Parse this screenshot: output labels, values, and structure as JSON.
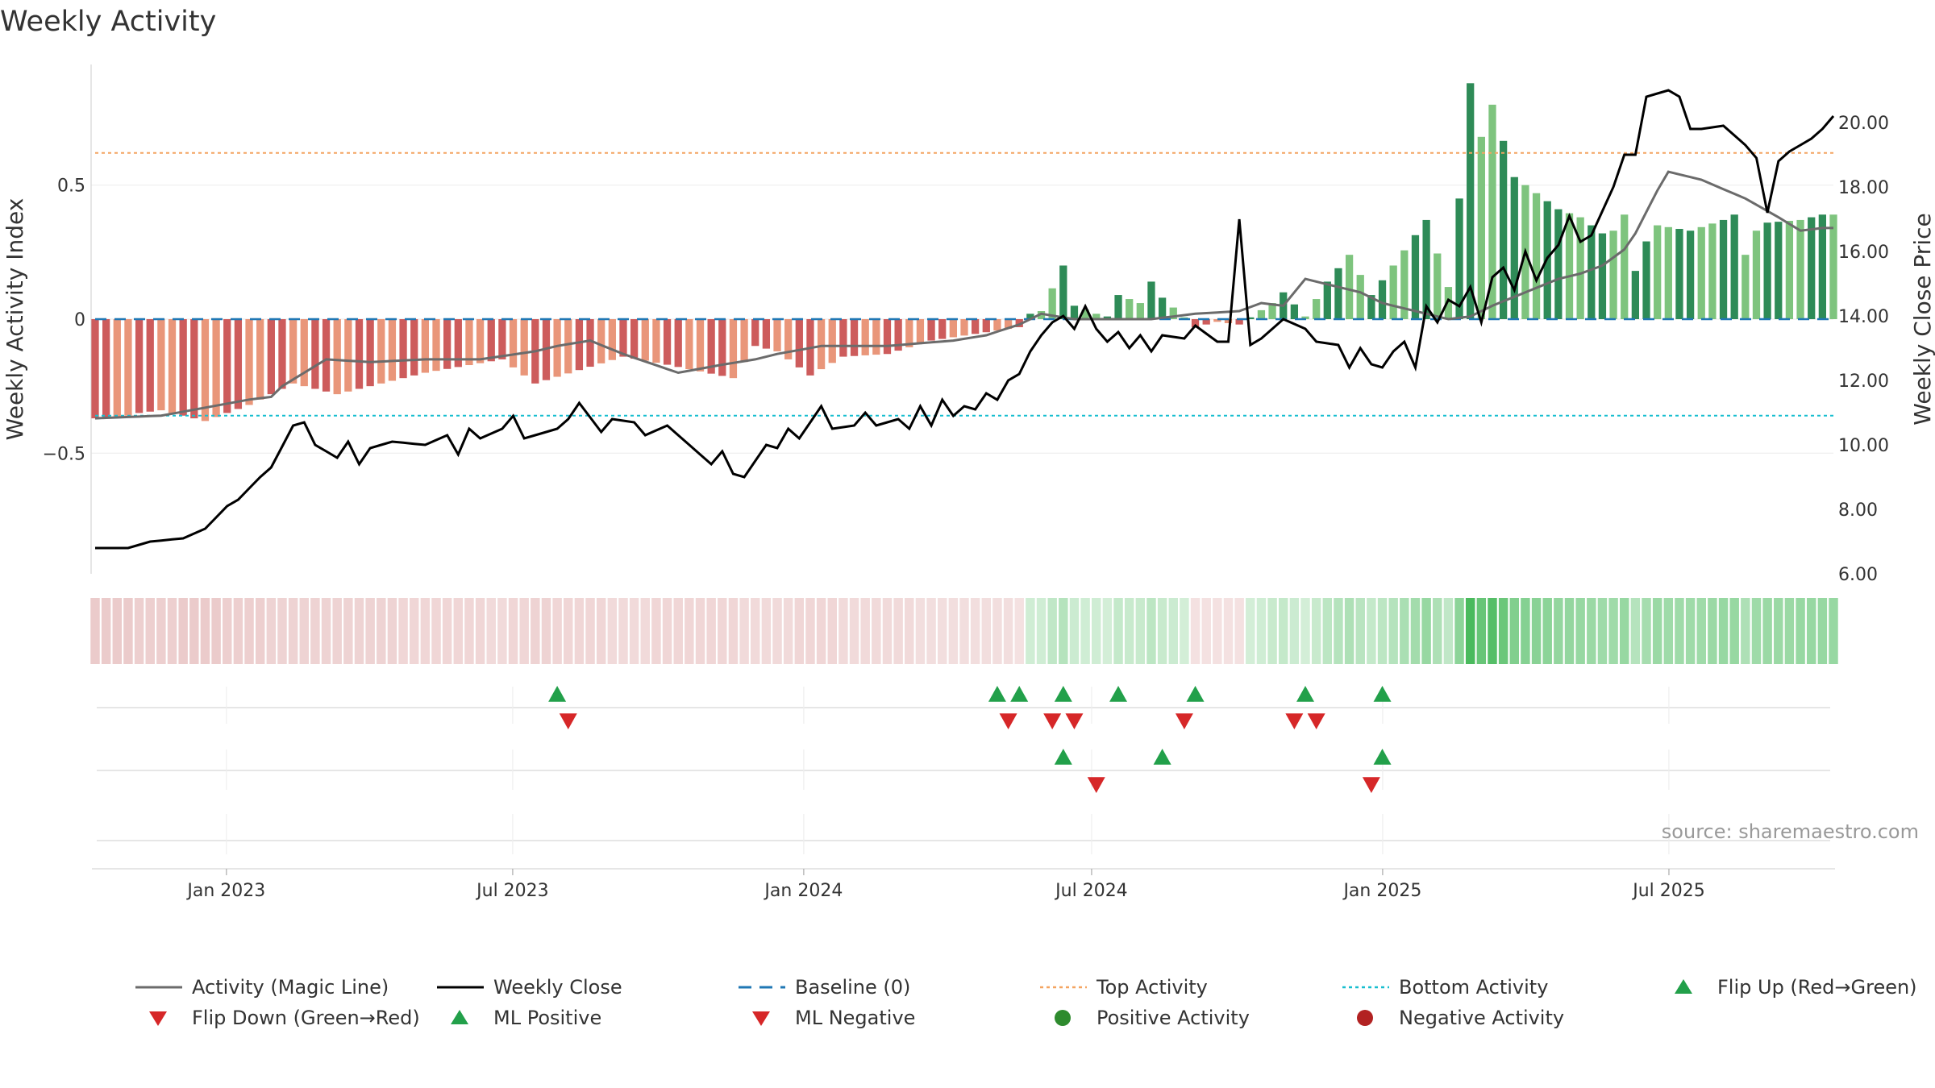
{
  "chart_data": {
    "type": "bar",
    "title": "Weekly Activity",
    "ylabel_left": "Weekly Activity Index",
    "ylabel_right": "Weekly Close Price",
    "source": "source: sharemaestro.com",
    "x_start": "2022-10-10",
    "x_end": "2025-10-13",
    "x_ticks": [
      {
        "date": "2023-01-01",
        "label": "Jan 2023"
      },
      {
        "date": "2023-07-01",
        "label": "Jul 2023"
      },
      {
        "date": "2024-01-01",
        "label": "Jan 2024"
      },
      {
        "date": "2024-07-01",
        "label": "Jul 2024"
      },
      {
        "date": "2025-01-01",
        "label": "Jan 2025"
      },
      {
        "date": "2025-07-01",
        "label": "Jul 2025"
      }
    ],
    "y_left": {
      "range": [
        -0.95,
        0.95
      ],
      "ticks": [
        {
          "v": 0.5,
          "label": "0.5"
        },
        {
          "v": 0,
          "label": "0"
        },
        {
          "v": -0.5,
          "label": "−0.5"
        }
      ]
    },
    "y_right": {
      "range": [
        6.0,
        21.8
      ],
      "ticks": [
        {
          "v": 20,
          "label": "20.00"
        },
        {
          "v": 18,
          "label": "18.00"
        },
        {
          "v": 16,
          "label": "16.00"
        },
        {
          "v": 14,
          "label": "14.00"
        },
        {
          "v": 12,
          "label": "12.00"
        },
        {
          "v": 10,
          "label": "10.00"
        },
        {
          "v": 8,
          "label": "8.00"
        },
        {
          "v": 6,
          "label": "6.00"
        }
      ]
    },
    "top_activity": 0.62,
    "bottom_activity": -0.36,
    "baseline": 0,
    "anchors": {
      "activity": [
        [
          0,
          -0.37
        ],
        [
          3,
          -0.36
        ],
        [
          4,
          -0.35
        ],
        [
          6,
          -0.34
        ],
        [
          10,
          -0.38
        ],
        [
          14,
          -0.32
        ],
        [
          18,
          -0.24
        ],
        [
          22,
          -0.28
        ],
        [
          30,
          -0.2
        ],
        [
          37,
          -0.15
        ],
        [
          40,
          -0.24
        ],
        [
          48,
          -0.14
        ],
        [
          52,
          -0.17
        ],
        [
          58,
          -0.22
        ],
        [
          60,
          -0.1
        ],
        [
          62,
          -0.12
        ],
        [
          65,
          -0.21
        ],
        [
          68,
          -0.14
        ],
        [
          72,
          -0.13
        ],
        [
          76,
          -0.08
        ],
        [
          84,
          -0.03
        ],
        [
          85,
          0.02
        ],
        [
          86,
          0.03
        ],
        [
          88,
          0.2
        ],
        [
          89,
          0.05
        ],
        [
          91,
          0.02
        ],
        [
          92,
          0.01
        ],
        [
          93,
          0.09
        ],
        [
          95,
          0.06
        ],
        [
          96,
          0.14
        ],
        [
          97,
          0.08
        ],
        [
          100,
          -0.03
        ],
        [
          102,
          -0.01
        ],
        [
          104,
          -0.02
        ],
        [
          107,
          0.06
        ],
        [
          108,
          0.1
        ],
        [
          110,
          0.01
        ],
        [
          112,
          0.14
        ],
        [
          114,
          0.24
        ],
        [
          116,
          0.09
        ],
        [
          118,
          0.2
        ],
        [
          121,
          0.37
        ],
        [
          123,
          0.12
        ],
        [
          124,
          0.45
        ],
        [
          125,
          0.88
        ],
        [
          126,
          0.68
        ],
        [
          127,
          0.8
        ],
        [
          129,
          0.53
        ],
        [
          130,
          0.5
        ],
        [
          133,
          0.41
        ],
        [
          135,
          0.38
        ],
        [
          137,
          0.32
        ],
        [
          138,
          0.33
        ],
        [
          139,
          0.39
        ],
        [
          140,
          0.18
        ],
        [
          141,
          0.29
        ],
        [
          142,
          0.35
        ],
        [
          145,
          0.33
        ],
        [
          148,
          0.37
        ],
        [
          149,
          0.39
        ],
        [
          150,
          0.24
        ],
        [
          151,
          0.33
        ],
        [
          152,
          0.36
        ],
        [
          155,
          0.37
        ],
        [
          157,
          0.39
        ]
      ],
      "magic": [
        [
          0,
          -0.37
        ],
        [
          6,
          -0.36
        ],
        [
          10,
          -0.33
        ],
        [
          14,
          -0.3
        ],
        [
          16,
          -0.29
        ],
        [
          17,
          -0.25
        ],
        [
          21,
          -0.15
        ],
        [
          25,
          -0.16
        ],
        [
          30,
          -0.15
        ],
        [
          35,
          -0.15
        ],
        [
          40,
          -0.12
        ],
        [
          42,
          -0.1
        ],
        [
          45,
          -0.08
        ],
        [
          48,
          -0.13
        ],
        [
          53,
          -0.2
        ],
        [
          57,
          -0.17
        ],
        [
          60,
          -0.15
        ],
        [
          62,
          -0.13
        ],
        [
          66,
          -0.1
        ],
        [
          72,
          -0.1
        ],
        [
          78,
          -0.08
        ],
        [
          81,
          -0.06
        ],
        [
          84,
          -0.02
        ],
        [
          86,
          0.02
        ],
        [
          89,
          0.0
        ],
        [
          96,
          0.0
        ],
        [
          98,
          0.01
        ],
        [
          100,
          0.02
        ],
        [
          104,
          0.03
        ],
        [
          106,
          0.06
        ],
        [
          108,
          0.05
        ],
        [
          110,
          0.15
        ],
        [
          115,
          0.1
        ],
        [
          117,
          0.06
        ],
        [
          121,
          0.02
        ],
        [
          123,
          0.0
        ],
        [
          125,
          0.01
        ],
        [
          127,
          0.05
        ],
        [
          130,
          0.1
        ],
        [
          133,
          0.15
        ],
        [
          134,
          0.16
        ],
        [
          135,
          0.17
        ],
        [
          137,
          0.2
        ],
        [
          139,
          0.26
        ],
        [
          140,
          0.32
        ],
        [
          141,
          0.4
        ],
        [
          142,
          0.48
        ],
        [
          143,
          0.55
        ],
        [
          146,
          0.52
        ],
        [
          150,
          0.45
        ],
        [
          153,
          0.38
        ],
        [
          155,
          0.33
        ],
        [
          157,
          0.34
        ]
      ],
      "close": [
        [
          0,
          6.8
        ],
        [
          3,
          6.8
        ],
        [
          5,
          7.0
        ],
        [
          8,
          7.1
        ],
        [
          10,
          7.4
        ],
        [
          12,
          8.1
        ],
        [
          13,
          8.3
        ],
        [
          15,
          9.0
        ],
        [
          16,
          9.3
        ],
        [
          18,
          10.6
        ],
        [
          19,
          10.7
        ],
        [
          20,
          10.0
        ],
        [
          22,
          9.6
        ],
        [
          23,
          10.1
        ],
        [
          24,
          9.4
        ],
        [
          25,
          9.9
        ],
        [
          27,
          10.1
        ],
        [
          30,
          10.0
        ],
        [
          32,
          10.3
        ],
        [
          33,
          9.7
        ],
        [
          34,
          10.5
        ],
        [
          35,
          10.2
        ],
        [
          37,
          10.5
        ],
        [
          38,
          10.9
        ],
        [
          39,
          10.2
        ],
        [
          41,
          10.4
        ],
        [
          42,
          10.5
        ],
        [
          43,
          10.8
        ],
        [
          44,
          11.3
        ],
        [
          46,
          10.4
        ],
        [
          47,
          10.8
        ],
        [
          49,
          10.7
        ],
        [
          50,
          10.3
        ],
        [
          52,
          10.6
        ],
        [
          54,
          10.0
        ],
        [
          56,
          9.4
        ],
        [
          57,
          9.8
        ],
        [
          58,
          9.1
        ],
        [
          59,
          9.0
        ],
        [
          61,
          10.0
        ],
        [
          62,
          9.9
        ],
        [
          63,
          10.5
        ],
        [
          64,
          10.2
        ],
        [
          66,
          11.2
        ],
        [
          67,
          10.5
        ],
        [
          69,
          10.6
        ],
        [
          70,
          11.0
        ],
        [
          71,
          10.6
        ],
        [
          73,
          10.8
        ],
        [
          74,
          10.5
        ],
        [
          75,
          11.2
        ],
        [
          76,
          10.6
        ],
        [
          77,
          11.4
        ],
        [
          78,
          10.9
        ],
        [
          79,
          11.2
        ],
        [
          80,
          11.1
        ],
        [
          81,
          11.6
        ],
        [
          82,
          11.4
        ],
        [
          83,
          12.0
        ],
        [
          84,
          12.2
        ],
        [
          85,
          12.9
        ],
        [
          86,
          13.4
        ],
        [
          87,
          13.8
        ],
        [
          88,
          14.0
        ],
        [
          89,
          13.6
        ],
        [
          90,
          14.3
        ],
        [
          91,
          13.6
        ],
        [
          92,
          13.2
        ],
        [
          93,
          13.5
        ],
        [
          94,
          13.0
        ],
        [
          95,
          13.4
        ],
        [
          96,
          12.9
        ],
        [
          97,
          13.4
        ],
        [
          99,
          13.3
        ],
        [
          100,
          13.7
        ],
        [
          102,
          13.2
        ],
        [
          103,
          13.2
        ],
        [
          104,
          17.0
        ],
        [
          105,
          13.1
        ],
        [
          106,
          13.3
        ],
        [
          108,
          13.9
        ],
        [
          110,
          13.6
        ],
        [
          111,
          13.2
        ],
        [
          113,
          13.1
        ],
        [
          114,
          12.4
        ],
        [
          115,
          13.0
        ],
        [
          116,
          12.5
        ],
        [
          117,
          12.4
        ],
        [
          118,
          12.9
        ],
        [
          119,
          13.2
        ],
        [
          120,
          12.4
        ],
        [
          121,
          14.3
        ],
        [
          122,
          13.8
        ],
        [
          123,
          14.5
        ],
        [
          124,
          14.3
        ],
        [
          125,
          14.9
        ],
        [
          126,
          13.8
        ],
        [
          127,
          15.2
        ],
        [
          128,
          15.5
        ],
        [
          129,
          14.8
        ],
        [
          130,
          16.0
        ],
        [
          131,
          15.1
        ],
        [
          132,
          15.8
        ],
        [
          133,
          16.2
        ],
        [
          134,
          17.1
        ],
        [
          135,
          16.3
        ],
        [
          136,
          16.5
        ],
        [
          138,
          18.0
        ],
        [
          139,
          19.0
        ],
        [
          140,
          19.0
        ],
        [
          141,
          20.8
        ],
        [
          142,
          20.9
        ],
        [
          143,
          21.0
        ],
        [
          144,
          20.8
        ],
        [
          145,
          19.8
        ],
        [
          146,
          19.8
        ],
        [
          148,
          19.9
        ],
        [
          150,
          19.3
        ],
        [
          151,
          18.9
        ],
        [
          152,
          17.2
        ],
        [
          153,
          18.8
        ],
        [
          154,
          19.1
        ],
        [
          156,
          19.5
        ],
        [
          157,
          19.8
        ],
        [
          158,
          20.2
        ]
      ]
    },
    "flip_up": [
      [
        42,
        0
      ],
      [
        82,
        0
      ],
      [
        84,
        0
      ],
      [
        88,
        0
      ],
      [
        93,
        0
      ],
      [
        100,
        0
      ],
      [
        110,
        0
      ],
      [
        117,
        0
      ]
    ],
    "flip_down": [
      [
        43,
        0
      ],
      [
        83,
        0
      ],
      [
        87,
        0
      ],
      [
        89,
        0
      ],
      [
        99,
        0
      ],
      [
        109,
        0
      ],
      [
        111,
        0
      ]
    ],
    "ml_positive": [
      [
        88,
        1
      ],
      [
        97,
        1
      ],
      [
        117,
        1
      ]
    ],
    "ml_negative": [
      [
        91,
        1
      ],
      [
        116,
        1
      ]
    ],
    "legend": [
      {
        "label": "Activity (Magic Line)",
        "marker": "line",
        "color": "#6b6b6b"
      },
      {
        "label": "Weekly Close",
        "marker": "line",
        "color": "#000000"
      },
      {
        "label": "Baseline (0)",
        "marker": "dash",
        "color": "#1f77b4"
      },
      {
        "label": "Top Activity",
        "marker": "dot",
        "color": "#f4a460"
      },
      {
        "label": "Bottom Activity",
        "marker": "dot",
        "color": "#17becf"
      },
      {
        "label": "Flip Up (Red→Green)",
        "marker": "tri-up",
        "color": "#22a04a"
      },
      {
        "label": "Flip Down (Green→Red)",
        "marker": "tri-down",
        "color": "#d62728"
      },
      {
        "label": "ML Positive",
        "marker": "tri-up",
        "color": "#22a04a"
      },
      {
        "label": "ML Negative",
        "marker": "tri-down",
        "color": "#d62728"
      },
      {
        "label": "Positive Activity",
        "marker": "circle",
        "color": "#2e8b2e"
      },
      {
        "label": "Negative Activity",
        "marker": "circle",
        "color": "#b22222"
      }
    ],
    "colors": {
      "pos_dark": "#2e8b57",
      "pos_light": "#7ec47e",
      "neg_dark": "#cd5c5c",
      "neg_light": "#e9967a",
      "magic": "#6b6b6b",
      "close": "#000000",
      "baseline": "#1f77b4",
      "top": "#f4a460",
      "bottom": "#17becf",
      "flip_up": "#22a04a",
      "flip_down": "#d62728"
    }
  }
}
